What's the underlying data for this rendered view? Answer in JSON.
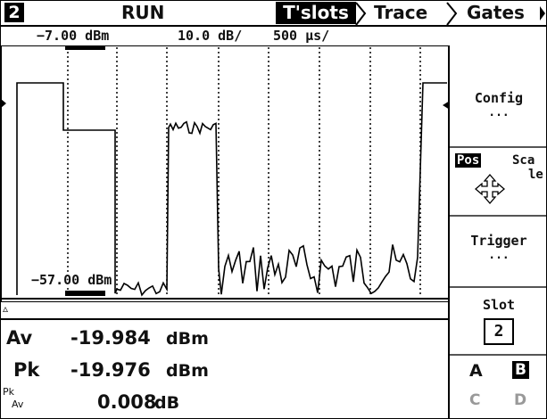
{
  "header": {
    "channel": "2",
    "status": "RUN",
    "tabs": [
      "T'slots",
      "Trace",
      "Gates"
    ]
  },
  "scale": {
    "ref_top": "−7.00 dBm",
    "per_div": "10.0 dB/",
    "time_per_div": "500 µs/",
    "ref_bottom": "−57.00 dBm"
  },
  "softkeys": {
    "config": {
      "label": "Config",
      "sub": "..."
    },
    "pos_scale": {
      "pos": "Pos",
      "scale_a": "Sca",
      "scale_b": "le"
    },
    "trigger": {
      "label": "Trigger",
      "sub": "..."
    },
    "slot": {
      "label": "Slot",
      "value": "2"
    },
    "channels": [
      "A",
      "B",
      "C",
      "D"
    ]
  },
  "measurements": [
    {
      "label": "Av",
      "value": "-19.984",
      "unit": "dBm"
    },
    {
      "label": "Pk",
      "value": "-19.976",
      "unit": "dBm"
    },
    {
      "label_num": "Pk",
      "label_den": "Av",
      "value": "0.008",
      "unit": "dB"
    }
  ]
}
